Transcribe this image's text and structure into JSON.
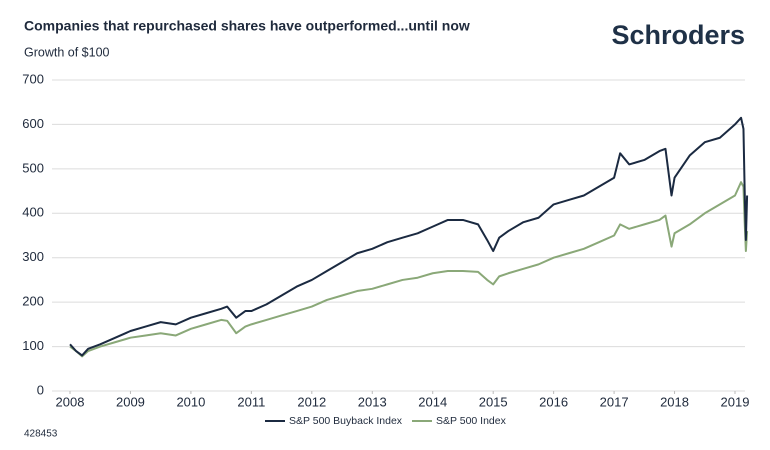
{
  "chart_data": {
    "type": "line",
    "title": "Companies that repurchased shares have outperformed...until now",
    "subtitle": "Growth of $100",
    "logo": "Schroders",
    "footnote": "428453",
    "x": [
      2008.0,
      2008.1,
      2008.2,
      2008.3,
      2008.5,
      2008.75,
      2009.0,
      2009.25,
      2009.5,
      2009.75,
      2010.0,
      2010.25,
      2010.5,
      2010.6,
      2010.75,
      2010.9,
      2011.0,
      2011.25,
      2011.5,
      2011.75,
      2012.0,
      2012.25,
      2012.5,
      2012.75,
      2013.0,
      2013.25,
      2013.5,
      2013.75,
      2014.0,
      2014.25,
      2014.5,
      2014.75,
      2014.9,
      2015.0,
      2015.1,
      2015.25,
      2015.5,
      2015.75,
      2016.0,
      2016.25,
      2016.5,
      2016.75,
      2017.0,
      2017.1,
      2017.25,
      2017.5,
      2017.75,
      2017.85,
      2017.95,
      2018.0,
      2018.25,
      2018.5,
      2018.75,
      2019.0,
      2019.1,
      2019.14,
      2019.16,
      2019.18,
      2019.2
    ],
    "series": [
      {
        "name": "S&P 500 Buyback Index",
        "color": "#1b2a41",
        "values": [
          105,
          90,
          80,
          95,
          105,
          120,
          135,
          145,
          155,
          150,
          165,
          175,
          185,
          190,
          165,
          180,
          180,
          195,
          215,
          235,
          250,
          270,
          290,
          310,
          320,
          335,
          345,
          355,
          370,
          385,
          385,
          375,
          340,
          315,
          345,
          360,
          380,
          390,
          420,
          430,
          440,
          460,
          480,
          535,
          510,
          520,
          540,
          545,
          440,
          480,
          530,
          560,
          570,
          600,
          615,
          590,
          450,
          340,
          440
        ]
      },
      {
        "name": "S&P 500 Index",
        "color": "#8aa878",
        "values": [
          100,
          90,
          78,
          90,
          100,
          110,
          120,
          125,
          130,
          125,
          140,
          150,
          160,
          158,
          130,
          145,
          150,
          160,
          170,
          180,
          190,
          205,
          215,
          225,
          230,
          240,
          250,
          255,
          265,
          270,
          270,
          268,
          250,
          240,
          258,
          265,
          275,
          285,
          300,
          310,
          320,
          335,
          350,
          375,
          365,
          375,
          385,
          395,
          325,
          355,
          375,
          400,
          420,
          440,
          470,
          460,
          380,
          315,
          360
        ]
      }
    ],
    "xlim": [
      2008,
      2019.2
    ],
    "xticks": [
      2008,
      2009,
      2010,
      2011,
      2012,
      2013,
      2014,
      2015,
      2016,
      2017,
      2018,
      2019
    ],
    "ylim": [
      0,
      700
    ],
    "yticks": [
      0,
      100,
      200,
      300,
      400,
      500,
      600,
      700
    ],
    "grid": true
  }
}
